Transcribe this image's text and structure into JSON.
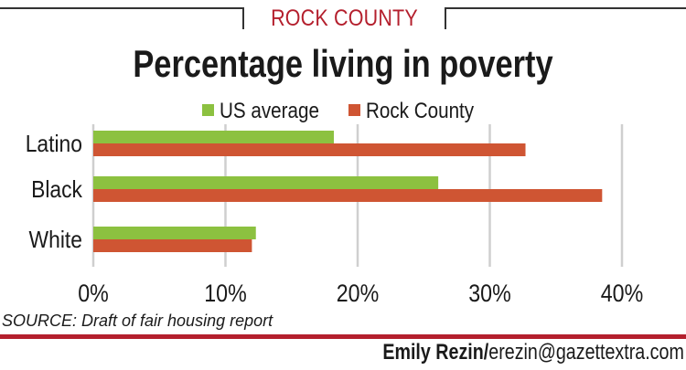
{
  "header": {
    "kicker": "ROCK COUNTY"
  },
  "chart_data": {
    "type": "bar",
    "orientation": "horizontal",
    "title": "Percentage living in poverty",
    "categories": [
      "Latino",
      "Black",
      "White"
    ],
    "series": [
      {
        "name": "US average",
        "color": "#8cc140",
        "values": [
          18.2,
          26.1,
          12.3
        ]
      },
      {
        "name": "Rock County",
        "color": "#cf5533",
        "values": [
          32.7,
          38.5,
          12.0
        ]
      }
    ],
    "xlim": [
      0,
      40
    ],
    "ticks": [
      0,
      10,
      20,
      30,
      40
    ],
    "tick_labels": [
      "0%",
      "10%",
      "20%",
      "30%",
      "40%"
    ],
    "grid": true,
    "legend_position": "top"
  },
  "footer": {
    "source": "SOURCE: Draft of fair housing report",
    "credit_name": "Emily Rezin/",
    "credit_email": "erezin@gazettextra.com"
  }
}
